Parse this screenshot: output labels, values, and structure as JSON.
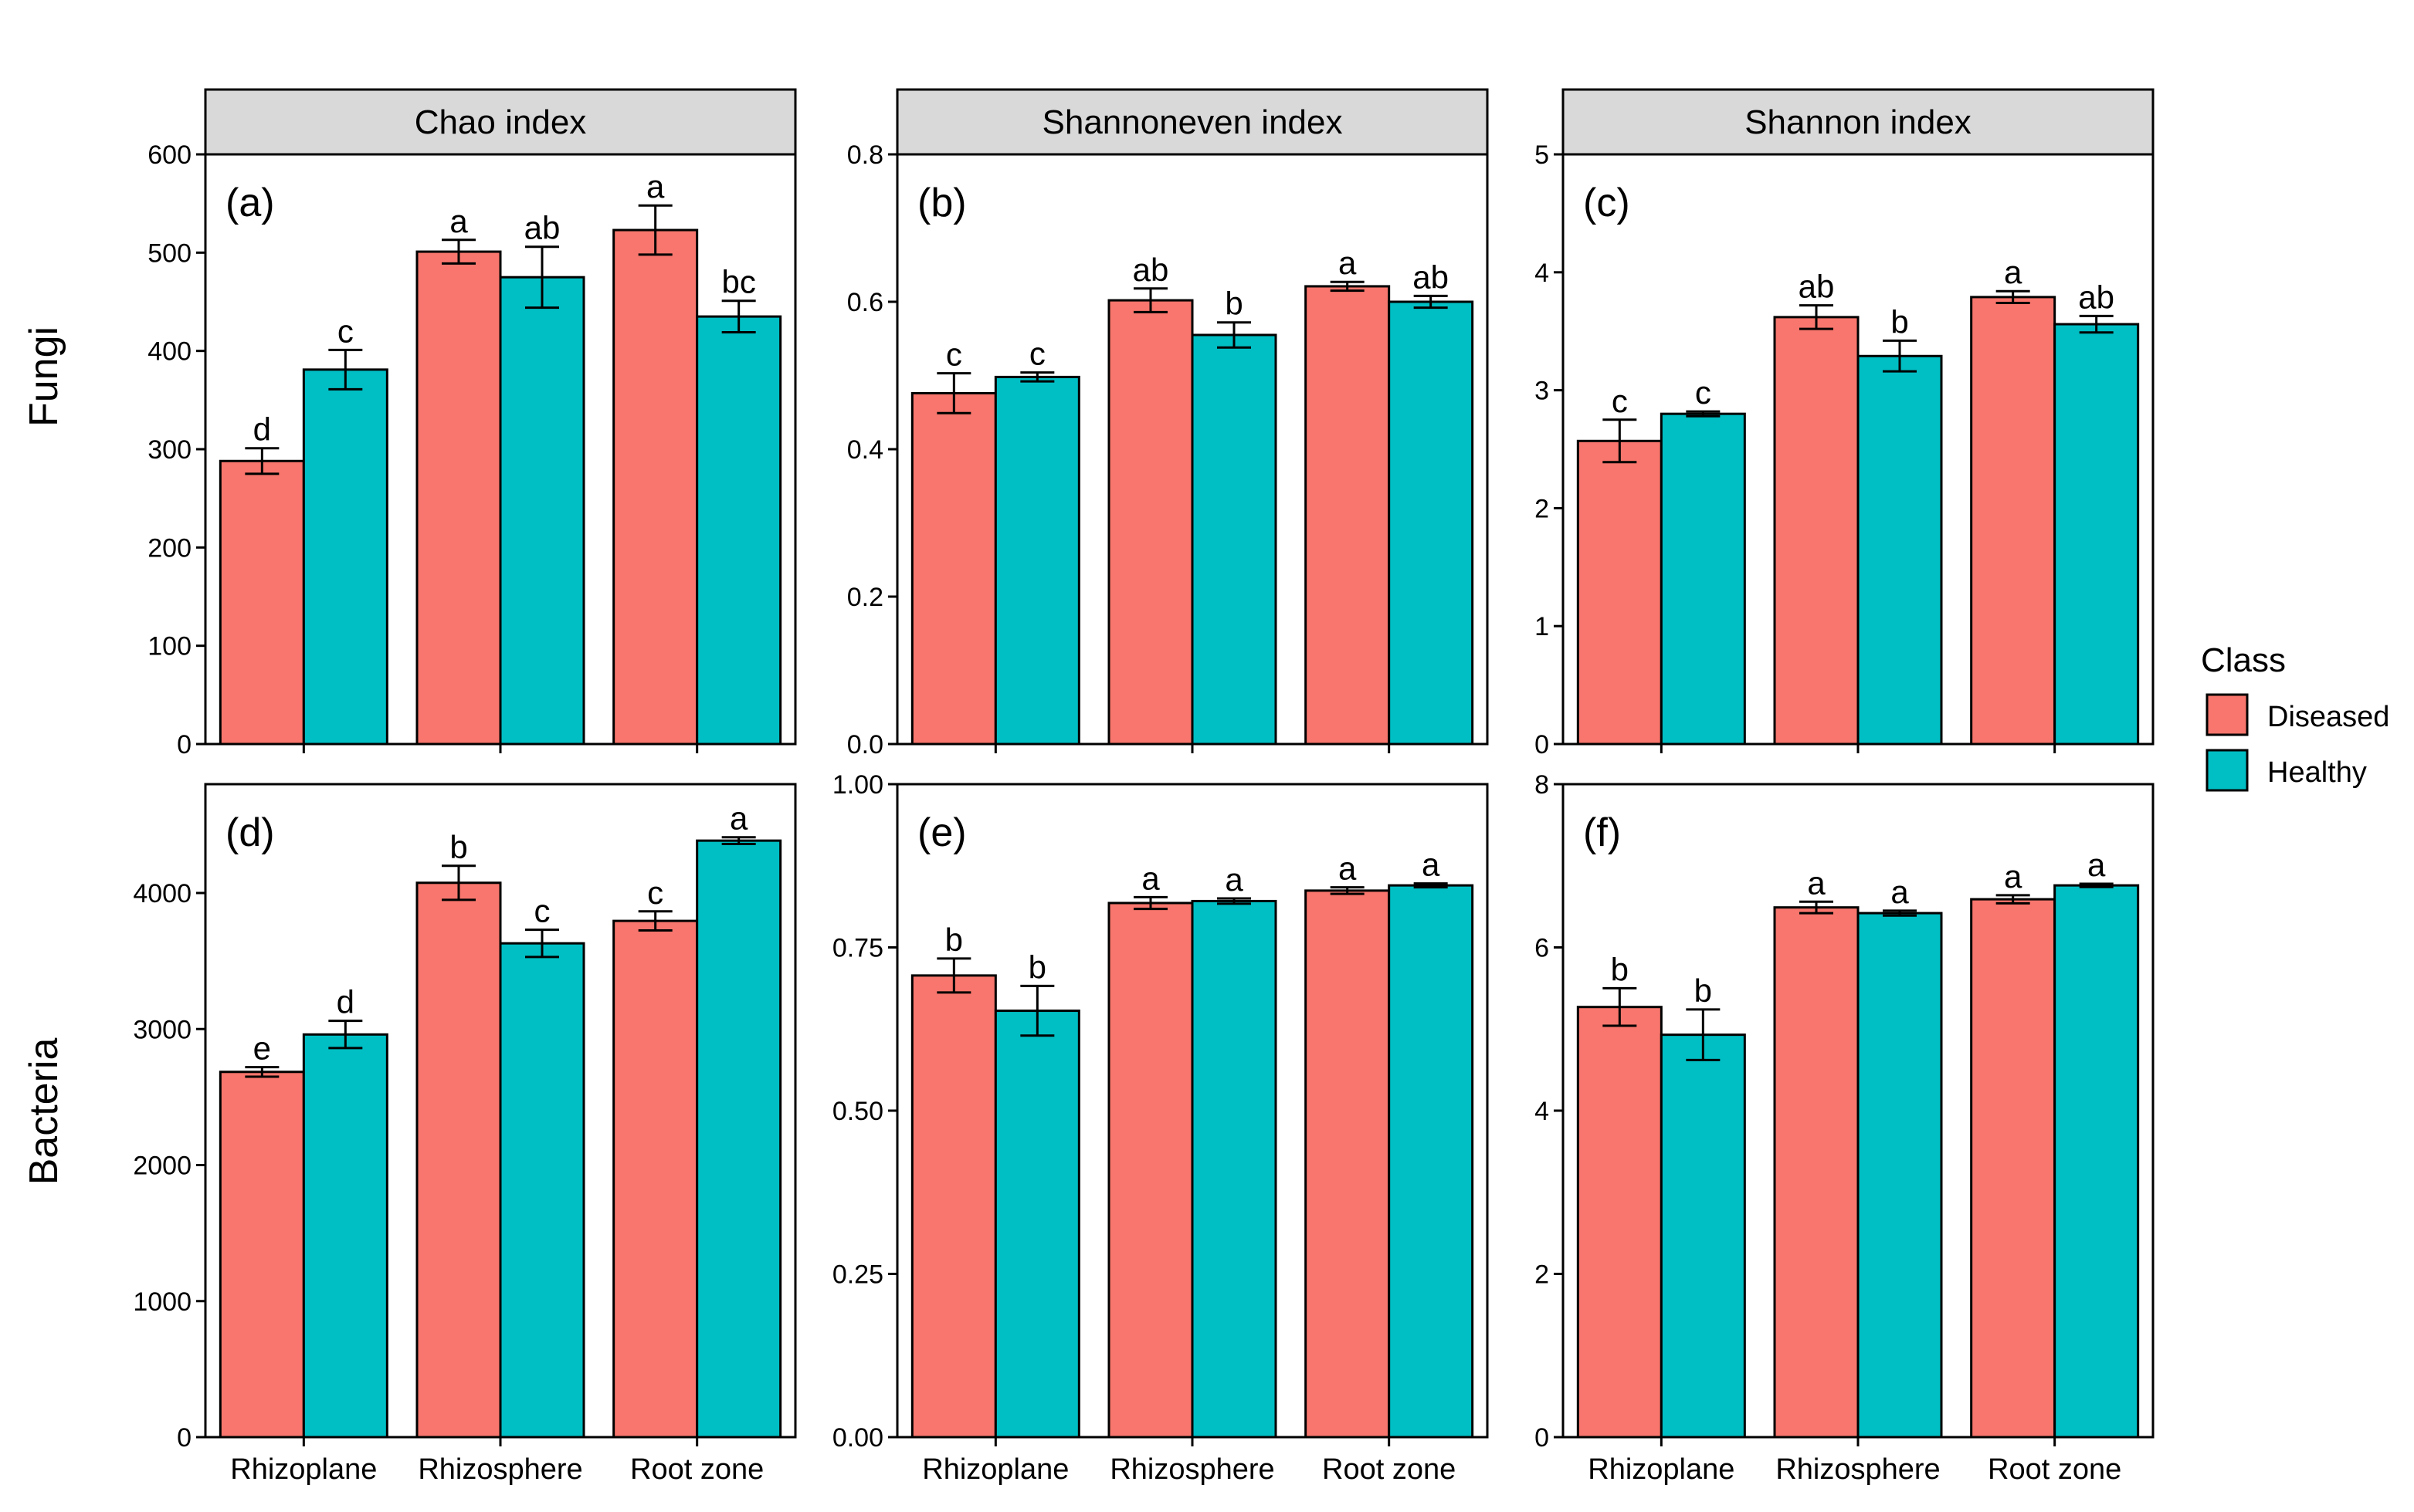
{
  "chart_data": {
    "type": "bar",
    "title": "",
    "categories": [
      "Rhizoplane",
      "Rhizosphere",
      "Root zone"
    ],
    "legend": {
      "title": "Class",
      "placement": "right",
      "entries": [
        {
          "name": "Diseased",
          "color": "#F8766D"
        },
        {
          "name": "Healthy",
          "color": "#00BFC4"
        }
      ]
    },
    "row_labels": [
      "Fungi",
      "Bacteria"
    ],
    "column_titles": [
      "Chao index",
      "Shannoneven index",
      "Shannon index"
    ],
    "panels": [
      {
        "tag": "(a)",
        "row": "Fungi",
        "column": "Chao index",
        "ylim": [
          0,
          600
        ],
        "yticks": [
          "0",
          "100",
          "200",
          "300",
          "400",
          "500",
          "600"
        ],
        "series": [
          {
            "name": "Diseased",
            "values": [
              288,
              501,
              523
            ],
            "errors": [
              13,
              12,
              25
            ],
            "letters": [
              "d",
              "a",
              "a"
            ]
          },
          {
            "name": "Healthy",
            "values": [
              381,
              475,
              435
            ],
            "errors": [
              20,
              31,
              16
            ],
            "letters": [
              "c",
              "ab",
              "bc"
            ]
          }
        ]
      },
      {
        "tag": "(b)",
        "row": "Fungi",
        "column": "Shannoneven index",
        "ylim": [
          0,
          0.8
        ],
        "yticks": [
          "0.0",
          "0.2",
          "0.4",
          "0.6",
          "0.8"
        ],
        "series": [
          {
            "name": "Diseased",
            "values": [
              0.476,
              0.602,
              0.621
            ],
            "errors": [
              0.027,
              0.016,
              0.006
            ],
            "letters": [
              "c",
              "ab",
              "a"
            ]
          },
          {
            "name": "Healthy",
            "values": [
              0.498,
              0.555,
              0.6
            ],
            "errors": [
              0.006,
              0.017,
              0.008
            ],
            "letters": [
              "c",
              "b",
              "ab"
            ]
          }
        ]
      },
      {
        "tag": "(c)",
        "row": "Fungi",
        "column": "Shannon index",
        "ylim": [
          0,
          5
        ],
        "yticks": [
          "0",
          "1",
          "2",
          "3",
          "4",
          "5"
        ],
        "series": [
          {
            "name": "Diseased",
            "values": [
              2.57,
              3.62,
              3.79
            ],
            "errors": [
              0.18,
              0.1,
              0.05
            ],
            "letters": [
              "c",
              "ab",
              "a"
            ]
          },
          {
            "name": "Healthy",
            "values": [
              2.8,
              3.29,
              3.56
            ],
            "errors": [
              0.02,
              0.13,
              0.07
            ],
            "letters": [
              "c",
              "b",
              "ab"
            ]
          }
        ]
      },
      {
        "tag": "(d)",
        "row": "Bacteria",
        "column": "Chao index",
        "ylim": [
          0,
          4800
        ],
        "yticks": [
          "0",
          "1000",
          "2000",
          "3000",
          "4000"
        ],
        "series": [
          {
            "name": "Diseased",
            "values": [
              2685,
              4075,
              3795
            ],
            "errors": [
              35,
              125,
              70
            ],
            "letters": [
              "e",
              "b",
              "c"
            ]
          },
          {
            "name": "Healthy",
            "values": [
              2960,
              3630,
              4385
            ],
            "errors": [
              100,
              100,
              25
            ],
            "letters": [
              "d",
              "c",
              "a"
            ]
          }
        ]
      },
      {
        "tag": "(e)",
        "row": "Bacteria",
        "column": "Shannoneven index",
        "ylim": [
          0,
          1.0
        ],
        "yticks": [
          "0.00",
          "0.25",
          "0.50",
          "0.75",
          "1.00"
        ],
        "series": [
          {
            "name": "Diseased",
            "values": [
              0.707,
              0.818,
              0.837
            ],
            "errors": [
              0.026,
              0.009,
              0.005
            ],
            "letters": [
              "b",
              "a",
              "a"
            ]
          },
          {
            "name": "Healthy",
            "values": [
              0.653,
              0.821,
              0.845
            ],
            "errors": [
              0.038,
              0.004,
              0.003
            ],
            "letters": [
              "b",
              "a",
              "a"
            ]
          }
        ]
      },
      {
        "tag": "(f)",
        "row": "Bacteria",
        "column": "Shannon index",
        "ylim": [
          0,
          8
        ],
        "yticks": [
          "0",
          "2",
          "4",
          "6",
          "8"
        ],
        "series": [
          {
            "name": "Diseased",
            "values": [
              5.27,
              6.49,
              6.59
            ],
            "errors": [
              0.23,
              0.07,
              0.05
            ],
            "letters": [
              "b",
              "a",
              "a"
            ]
          },
          {
            "name": "Healthy",
            "values": [
              4.93,
              6.42,
              6.76
            ],
            "errors": [
              0.31,
              0.03,
              0.02
            ],
            "letters": [
              "b",
              "a",
              "a"
            ]
          }
        ]
      }
    ]
  }
}
